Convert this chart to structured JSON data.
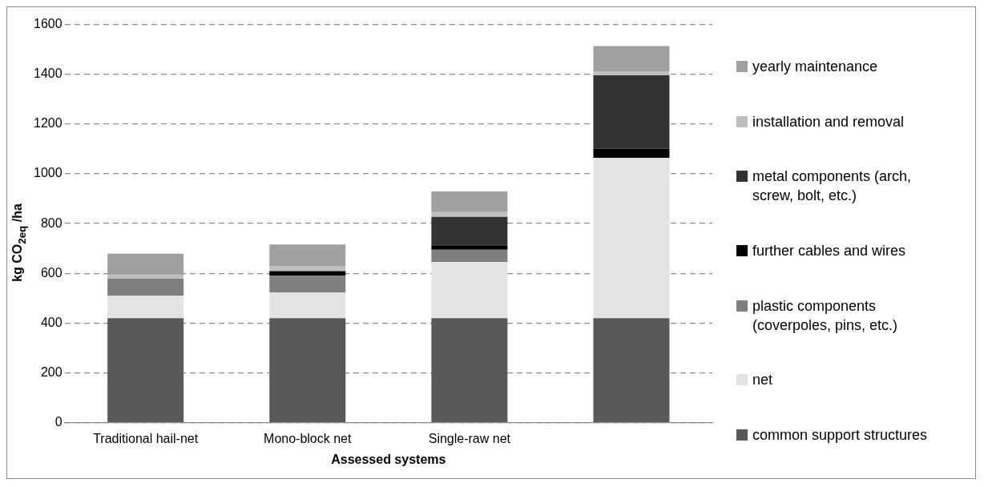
{
  "chart_data": {
    "type": "bar",
    "stacked": true,
    "categories": [
      "Traditional hail-net",
      "Mono-block net",
      "Single-raw net",
      null
    ],
    "xlabel": "Assessed systems",
    "ylabel": "kg CO$_{2eq}$ /ha",
    "ylim": [
      0,
      1600
    ],
    "yticks": [
      0,
      200,
      400,
      600,
      800,
      1000,
      1200,
      1400,
      1600
    ],
    "grid": "y",
    "legend": "right",
    "series": [
      {
        "name": "common support structures",
        "color": "#595959",
        "values": [
          420,
          420,
          420,
          420
        ]
      },
      {
        "name": "net",
        "color": "#e3e3e3",
        "values": [
          90,
          103,
          226,
          644
        ]
      },
      {
        "name": "plastic components (coverpoles, pins, etc.)",
        "color": "#7f7f7f",
        "values": [
          68,
          67,
          49,
          0
        ]
      },
      {
        "name": "further cables and wires",
        "color": "#000000",
        "values": [
          0,
          19,
          15,
          37
        ]
      },
      {
        "name": "metal components (arch, screw, bolt, etc.)",
        "color": "#333333",
        "values": [
          0,
          0,
          117,
          295
        ]
      },
      {
        "name": "installation and removal",
        "color": "#bfbfbf",
        "values": [
          15,
          18,
          19,
          16
        ]
      },
      {
        "name": "yearly maintenance",
        "color": "#a0a0a0",
        "values": [
          86,
          89,
          83,
          101
        ]
      }
    ]
  }
}
